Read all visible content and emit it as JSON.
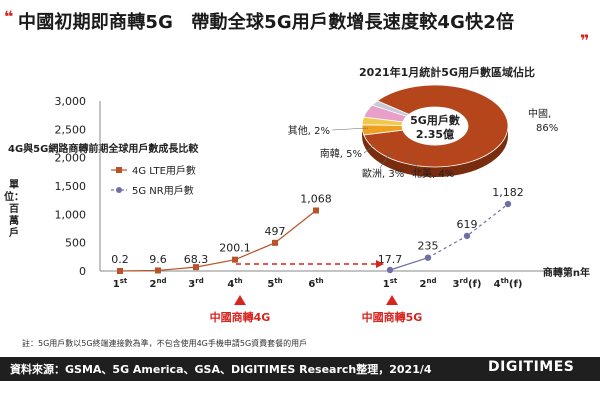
{
  "title": "中國初期即商轉5G　帶動全球5G用戶數增長速度較4G快2倍",
  "footnote": "註：5G用戶數以5G終端連接數為準，不包含使用4G手機申請5G資費套餐的用戶",
  "source": "資料來源：GSMA、5G America、GSA、DIGITIMES Research整理，2021/4",
  "logo": "DIGITIMES",
  "colors": {
    "lte": "#b8532a",
    "nr": "#6f6fa8",
    "red": "#d8241f",
    "pie_main": "#b5451a"
  },
  "chart_data": [
    {
      "type": "line",
      "title": "4G與5G網路商轉前期全球用戶數成長比較",
      "ylabel": "單位：百萬戶",
      "ylim": [
        0,
        3000
      ],
      "yticks": [
        "0",
        "500",
        "1,000",
        "1,500",
        "2,000",
        "2,500",
        "3,000"
      ],
      "xlabel": "商轉第n年",
      "series": [
        {
          "name": "4G LTE用戶數",
          "x": [
            "1st",
            "2nd",
            "3rd",
            "4th",
            "5th",
            "6th"
          ],
          "values": [
            0.2,
            9.6,
            68.3,
            200.1,
            497,
            1068
          ],
          "labels": [
            "0.2",
            "9.6",
            "68.3",
            "200.1",
            "497",
            "1,068"
          ]
        },
        {
          "name": "5G NR用戶數",
          "x": [
            "1st",
            "2nd",
            "3rd(f)",
            "4th(f)"
          ],
          "values": [
            17.7,
            235,
            619,
            1182
          ],
          "labels": [
            "17.7",
            "235",
            "619",
            "1,182"
          ]
        }
      ],
      "markers": [
        "中國商轉4G",
        "中國商轉5G"
      ]
    },
    {
      "type": "pie",
      "title": "2021年1月統計5G用戶數區域佔比",
      "center_label": "5G用戶數",
      "center_value": "2.35億",
      "slices": [
        {
          "label": "中國, 86%",
          "value": 86,
          "color": "#b5451a"
        },
        {
          "label": "北美, 4%",
          "value": 4,
          "color": "#f0a020"
        },
        {
          "label": "歐洲, 3%",
          "value": 3,
          "color": "#f2c84a"
        },
        {
          "label": "南韓, 5%",
          "value": 5,
          "color": "#e8a0c8"
        },
        {
          "label": "其他, 2%",
          "value": 2,
          "color": "#c8c8d8"
        }
      ]
    }
  ]
}
